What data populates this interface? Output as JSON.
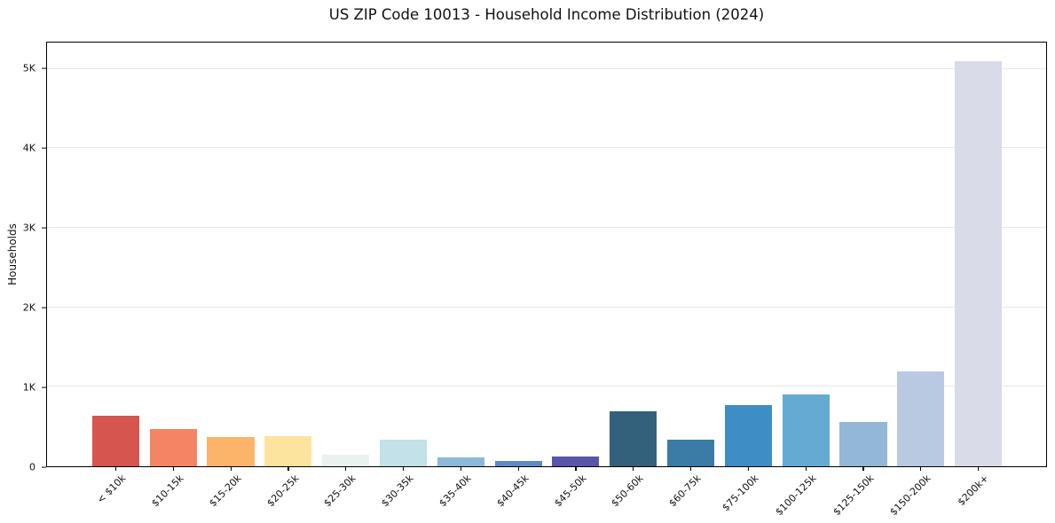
{
  "chart_data": {
    "type": "bar",
    "title": "US ZIP Code 10013 - Household Income Distribution (2024)",
    "xlabel": "",
    "ylabel": "Households",
    "ylim": [
      0,
      5333
    ],
    "grid": "horizontal",
    "legend": "none",
    "background_color": "#ffffff",
    "axis_color": "#000000",
    "gridline_color": "#e9e9e9",
    "y_ticks": [
      {
        "value": 0,
        "label": "0"
      },
      {
        "value": 1000,
        "label": "1K"
      },
      {
        "value": 2000,
        "label": "2K"
      },
      {
        "value": 3000,
        "label": "3K"
      },
      {
        "value": 4000,
        "label": "4K"
      },
      {
        "value": 5000,
        "label": "5K"
      }
    ],
    "categories": [
      "< $10k",
      "$10-15k",
      "$15-20k",
      "$20-25k",
      "$25-30k",
      "$30-35k",
      "$35-40k",
      "$40-45k",
      "$45-50k",
      "$50-60k",
      "$60-75k",
      "$75-100k",
      "$100-125k",
      "$125-150k",
      "$150-200k",
      "$200k+"
    ],
    "values": [
      640,
      470,
      365,
      385,
      150,
      335,
      115,
      70,
      120,
      695,
      330,
      765,
      900,
      555,
      1190,
      5100
    ],
    "bar_colors": [
      "#d6554f",
      "#f48564",
      "#fcb469",
      "#fde49e",
      "#e9f2ee",
      "#c2e1e9",
      "#8cb9da",
      "#6189c5",
      "#5b55a9",
      "#33607a",
      "#3a7ca6",
      "#3e8dc5",
      "#65aad1",
      "#93b7d6",
      "#b9c9e1",
      "#d9dbe8"
    ]
  }
}
